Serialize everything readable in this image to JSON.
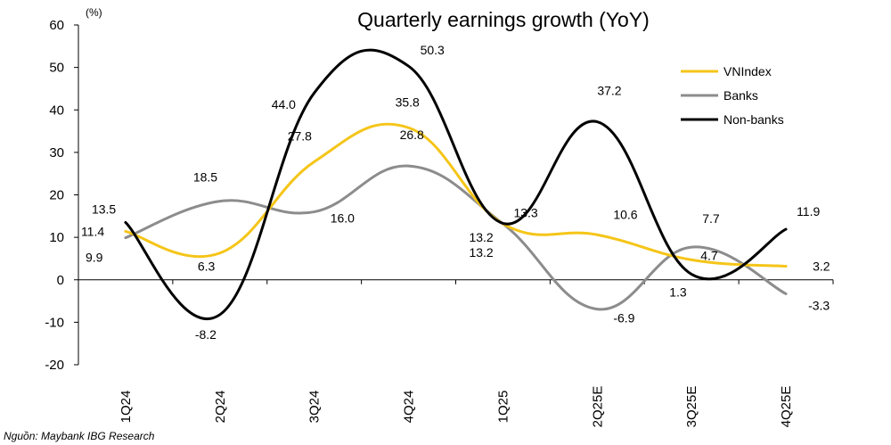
{
  "chart_data": {
    "type": "line",
    "title": "Quarterly earnings growth (YoY)",
    "unit_label": "(%)",
    "categories": [
      "1Q24",
      "2Q24",
      "3Q24",
      "4Q24",
      "1Q25",
      "2Q25E",
      "3Q25E",
      "4Q25E"
    ],
    "ylim": [
      -20,
      60
    ],
    "yticks": [
      -20,
      -10,
      0,
      10,
      20,
      30,
      40,
      50,
      60
    ],
    "legend_position": "top-right",
    "series": [
      {
        "name": "VNIndex",
        "color": "#F5C518",
        "values": [
          11.4,
          6.3,
          27.8,
          35.8,
          13.2,
          10.6,
          4.7,
          3.2
        ],
        "labels": [
          "11.4",
          "6.3",
          "27.8",
          "35.8",
          "13.2",
          "10.6",
          "4.7",
          "3.2"
        ]
      },
      {
        "name": "Banks",
        "color": "#8C8C8C",
        "values": [
          9.9,
          18.5,
          16.0,
          26.8,
          13.2,
          -6.9,
          7.7,
          -3.3
        ],
        "labels": [
          "9.9",
          "18.5",
          "16.0",
          "26.8",
          "13.2",
          "-6.9",
          "7.7",
          "-3.3"
        ]
      },
      {
        "name": "Non-banks",
        "color": "#000000",
        "values": [
          13.5,
          -8.2,
          44.0,
          50.3,
          13.3,
          37.2,
          1.3,
          11.9
        ],
        "labels": [
          "13.5",
          "-8.2",
          "44.0",
          "50.3",
          "13.3",
          "37.2",
          "1.3",
          "11.9"
        ]
      }
    ]
  },
  "source_text": "Nguồn: Maybank IBG Research"
}
